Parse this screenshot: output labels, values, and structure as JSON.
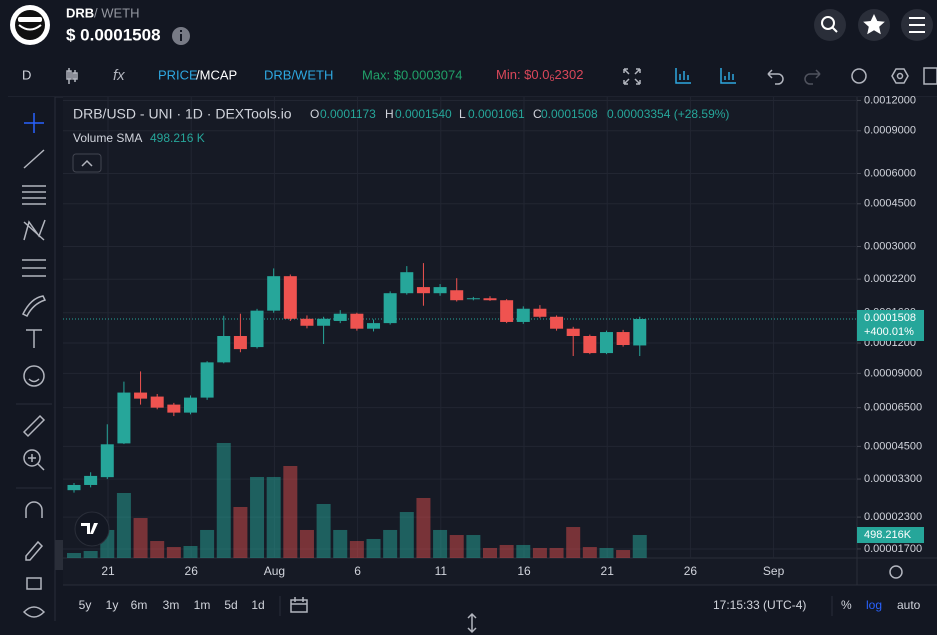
{
  "header": {
    "symbol": "DRB",
    "pair": "/ WETH",
    "price": "$ 0.0001508"
  },
  "toolbar": {
    "interval": "D",
    "price": "PRICE",
    "mcap": "/MCAP",
    "pair": "DRB/WETH",
    "max": "Max: $0.0003074",
    "min_prefix": "Min: $0.0",
    "min_sub": "6",
    "min_rest": "2302"
  },
  "legend": {
    "title": "DRB/USD - UNI · 1D · DEXTools.io",
    "o_label": "O",
    "o": "0.0001173",
    "h_label": "H",
    "h": "0.0001540",
    "l_label": "L",
    "l": "0.0001061",
    "c_label": "C",
    "c": "0.0001508",
    "change": "0.00003354 (+28.59%)",
    "volume_label": "Volume SMA",
    "volume": "498.216 K"
  },
  "chart_data": {
    "type": "candlestick",
    "open": [
      2.97e-05,
      3.12e-05,
      3.36e-05,
      4.63e-05,
      7.5e-05,
      7.22e-05,
      6.69e-05,
      6.2e-05,
      7.15e-05,
      9.99e-05,
      0.0001283,
      0.0001155,
      0.0001632,
      0.0002264,
      0.0001511,
      0.0001414,
      0.000148,
      0.0001585,
      0.0001375,
      0.000145,
      0.0001926,
      0.0002041,
      0.0001926,
      0.0001981,
      0.000182,
      0.0001836,
      0.0001802,
      0.0001466,
      0.0001662,
      0.000154,
      0.0001375,
      0.0001283,
      0.0001091,
      0.0001332,
      0.0001173
    ],
    "high": [
      3.18e-05,
      3.52e-05,
      5.55e-05,
      8.32e-05,
      9.17e-05,
      7.4e-05,
      6.8e-05,
      7.3e-05,
      0.000101,
      0.0001555,
      0.0001585,
      0.000166,
      0.0002437,
      0.00023,
      0.000156,
      0.000154,
      0.000164,
      0.00016,
      0.00015,
      0.000196,
      0.0002491,
      0.0002563,
      0.00021,
      0.0002221,
      0.000186,
      0.000187,
      0.000182,
      0.00017,
      0.000172,
      0.000156,
      0.00014,
      0.00013,
      0.000135,
      0.000136,
      0.000154
    ],
    "low": [
      2.9e-05,
      3.05e-05,
      3.3e-05,
      4.6e-05,
      6.69e-05,
      6.4e-05,
      6e-05,
      6.1e-05,
      7e-05,
      9.9e-05,
      0.00011,
      0.000114,
      0.00016,
      0.000148,
      0.000138,
      0.0001189,
      0.000145,
      0.000135,
      0.000134,
      0.000143,
      0.00019,
      0.000171,
      0.000188,
      0.000178,
      0.00018,
      0.000179,
      0.000145,
      0.000144,
      0.000152,
      0.000135,
      0.0001061,
      0.000108,
      0.000108,
      0.000116,
      0.0001061
    ],
    "close": [
      3.12e-05,
      3.4e-05,
      4.59e-05,
      7.5e-05,
      7.08e-05,
      6.5e-05,
      6.2e-05,
      7.15e-05,
      9.99e-05,
      0.0001283,
      0.0001133,
      0.0001632,
      0.0002264,
      0.0001511,
      0.0001414,
      0.0001511,
      0.0001585,
      0.0001375,
      0.000145,
      0.0001926,
      0.0002351,
      0.0001926,
      0.0002041,
      0.0001802,
      0.0001836,
      0.0001802,
      0.0001466,
      0.0001662,
      0.000154,
      0.0001375,
      0.0001283,
      0.0001091,
      0.0001332,
      0.0001178,
      0.0001508
    ],
    "volume": [
      108000,
      152000,
      607000,
      1408000,
      866000,
      368000,
      238000,
      260000,
      607000,
      2491000,
      1105000,
      1755000,
      1755000,
      1993000,
      607000,
      1170000,
      607000,
      368000,
      412000,
      607000,
      996000,
      1300000,
      607000,
      498000,
      498000,
      217000,
      282000,
      282000,
      217000,
      217000,
      671000,
      238000,
      217000,
      173000,
      498216
    ],
    "up_color": "#26a69a",
    "down_color": "#ef5350",
    "log_scale": true,
    "grid": true,
    "ylim": [
      1.56e-05,
      0.00124
    ],
    "yticks": [
      {
        "value": 0.0012,
        "label": "0.0012000"
      },
      {
        "value": 0.0009,
        "label": "0.0009000"
      },
      {
        "value": 0.0006,
        "label": "0.0006000"
      },
      {
        "value": 0.00045,
        "label": "0.0004500"
      },
      {
        "value": 0.0003,
        "label": "0.0003000"
      },
      {
        "value": 0.00022,
        "label": "0.0002200"
      },
      {
        "value": 0.00016,
        "label": "0.0001600"
      },
      {
        "value": 0.00012,
        "label": "0.0001200"
      },
      {
        "value": 9e-05,
        "label": "0.00009000"
      },
      {
        "value": 6.5e-05,
        "label": "0.00006500"
      },
      {
        "value": 4.5e-05,
        "label": "0.00004500"
      },
      {
        "value": 3.3e-05,
        "label": "0.00003300"
      },
      {
        "value": 2.3e-05,
        "label": "0.00002300"
      },
      {
        "value": 1.7e-05,
        "label": "0.00001700"
      }
    ],
    "xticks": [
      "21",
      "26",
      "Aug",
      "6",
      "11",
      "16",
      "21",
      "26",
      "Sep"
    ],
    "last_price_label": "0.0001508",
    "last_change_label": "+400.01%",
    "last_volume_label": "498.216K"
  },
  "footer": {
    "ranges": [
      "5y",
      "1y",
      "6m",
      "3m",
      "1m",
      "5d",
      "1d"
    ],
    "time": "17:15:33 (UTC-4)",
    "percent": "%",
    "log": "log",
    "auto": "auto"
  }
}
